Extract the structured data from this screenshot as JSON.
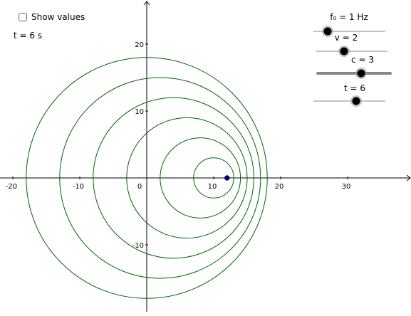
{
  "checkbox": {
    "label": "Show values",
    "checked": false
  },
  "time_text": "t = 6 s",
  "axes": {
    "x_ticks": [
      "-20",
      "-10",
      "0",
      "10",
      "20",
      "30"
    ],
    "y_ticks": [
      "20",
      "10",
      "-10"
    ]
  },
  "sliders": [
    {
      "label": "f₀ = 1 Hz",
      "value": 1
    },
    {
      "label": "v = 2",
      "value": 2
    },
    {
      "label": "c = 3",
      "value": 3
    },
    {
      "label": "t = 6",
      "value": 6
    }
  ],
  "wavefronts": [
    {
      "cx": 0,
      "cy": 0,
      "r": 18
    },
    {
      "cx": 2,
      "cy": 0,
      "r": 15
    },
    {
      "cx": 4,
      "cy": 0,
      "r": 12
    },
    {
      "cx": 6,
      "cy": 0,
      "r": 9
    },
    {
      "cx": 8,
      "cy": 0,
      "r": 6
    },
    {
      "cx": 10,
      "cy": 0,
      "r": 3
    }
  ],
  "source": {
    "x": 12,
    "y": 0
  },
  "colors": {
    "wavefront": "#006400",
    "source": "#000080",
    "axis": "#000000"
  }
}
